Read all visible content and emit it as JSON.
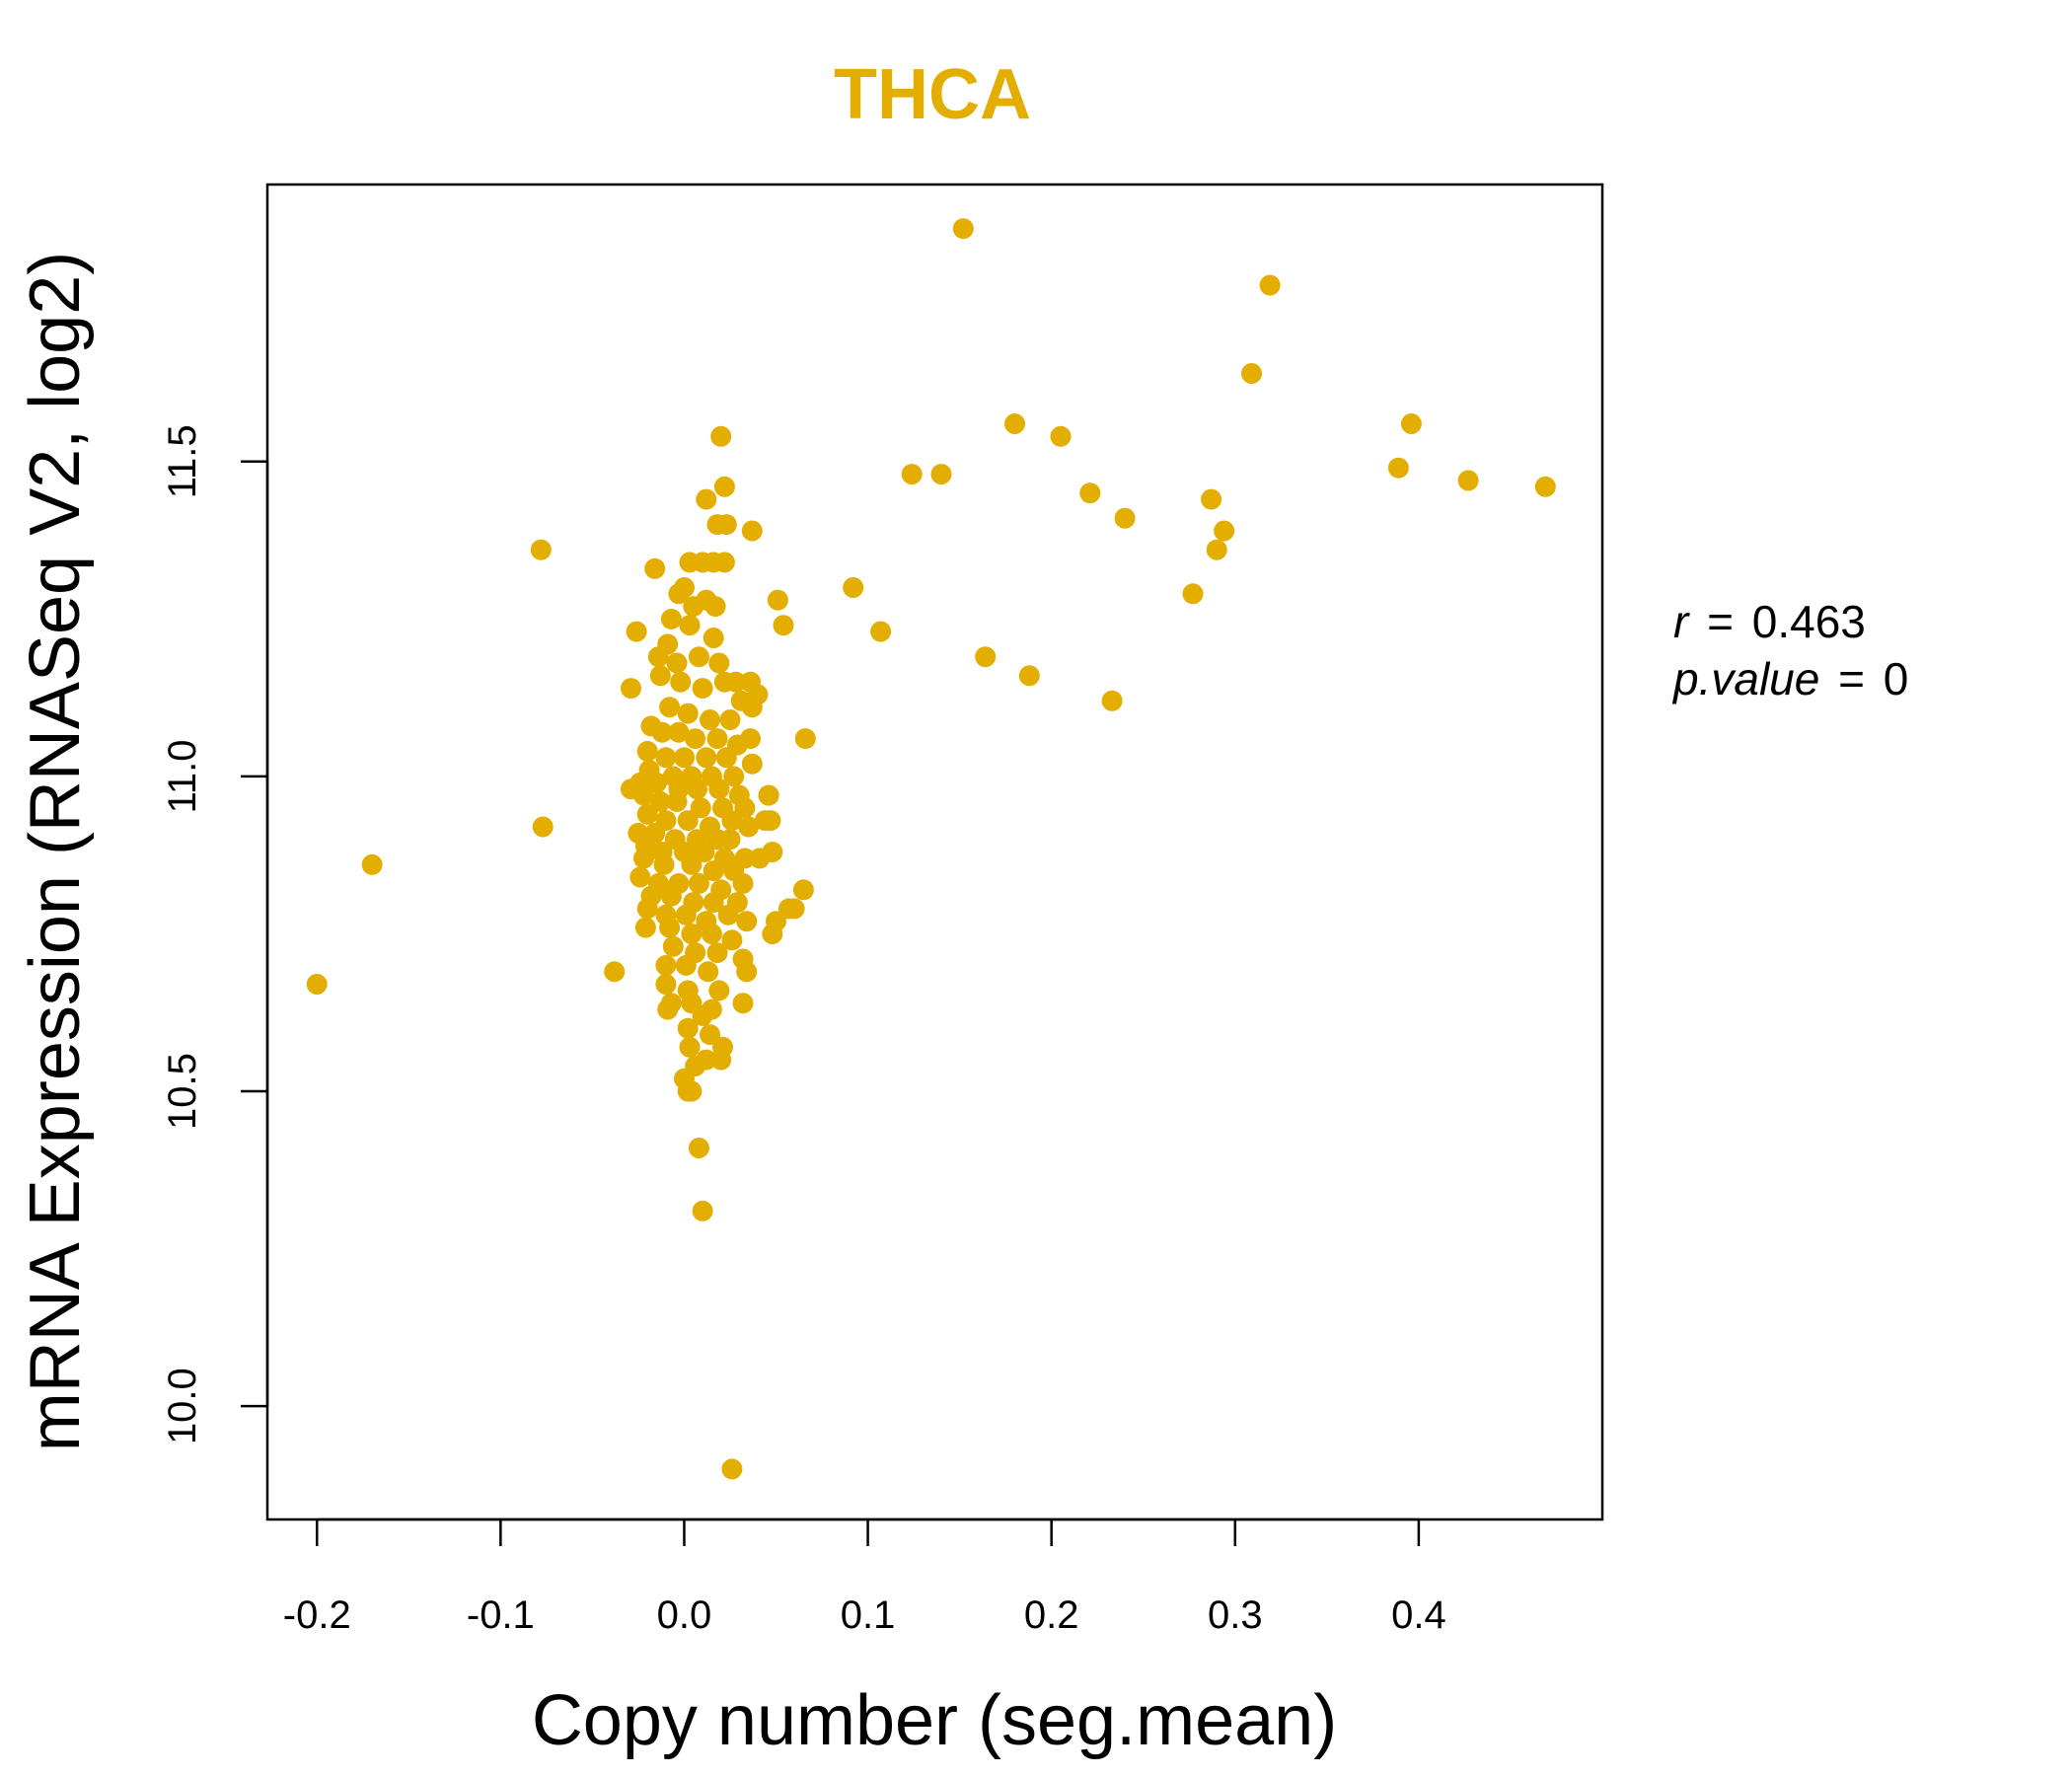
{
  "chart_data": {
    "type": "scatter",
    "title": "THCA",
    "xlabel": "Copy number (seg.mean)",
    "ylabel": "mRNA Expression (RNASeq V2, log2)",
    "xlim": [
      -0.227,
      0.5
    ],
    "ylim": [
      9.82,
      11.94
    ],
    "xticks": [
      -0.2,
      -0.1,
      0.0,
      0.1,
      0.2,
      0.3,
      0.4
    ],
    "xtick_labels": [
      "-0.2",
      "-0.1",
      "0.0",
      "0.1",
      "0.2",
      "0.3",
      "0.4"
    ],
    "yticks": [
      10.0,
      10.5,
      11.0,
      11.5
    ],
    "ytick_labels": [
      "10.0",
      "10.5",
      "11.0",
      "11.5"
    ],
    "point_color": "#E3AE00",
    "stats": {
      "r_label": "r",
      "r_value": "0.463",
      "p_label": "p.value",
      "p_value": "0",
      "eq": "="
    },
    "points": [
      [
        -0.2,
        10.67
      ],
      [
        -0.17,
        10.86
      ],
      [
        -0.078,
        11.36
      ],
      [
        -0.077,
        10.92
      ],
      [
        -0.038,
        10.69
      ],
      [
        0.152,
        11.87
      ],
      [
        0.319,
        11.78
      ],
      [
        0.309,
        11.64
      ],
      [
        0.18,
        11.56
      ],
      [
        0.205,
        11.54
      ],
      [
        0.124,
        11.48
      ],
      [
        0.14,
        11.48
      ],
      [
        0.221,
        11.45
      ],
      [
        0.24,
        11.41
      ],
      [
        0.287,
        11.44
      ],
      [
        0.294,
        11.39
      ],
      [
        0.29,
        11.36
      ],
      [
        0.277,
        11.29
      ],
      [
        0.092,
        11.3
      ],
      [
        0.107,
        11.23
      ],
      [
        0.164,
        11.19
      ],
      [
        0.188,
        11.16
      ],
      [
        0.233,
        11.12
      ],
      [
        0.396,
        11.56
      ],
      [
        0.389,
        11.49
      ],
      [
        0.427,
        11.47
      ],
      [
        0.469,
        11.46
      ],
      [
        0.066,
        11.06
      ],
      [
        0.065,
        10.82
      ],
      [
        0.06,
        10.79
      ],
      [
        0.057,
        10.79
      ],
      [
        0.05,
        10.77
      ],
      [
        0.048,
        10.75
      ],
      [
        0.046,
        10.97
      ],
      [
        0.047,
        10.93
      ],
      [
        0.044,
        10.93
      ],
      [
        0.048,
        10.88
      ],
      [
        0.041,
        10.87
      ],
      [
        0.051,
        11.28
      ],
      [
        0.054,
        11.24
      ],
      [
        0.037,
        11.39
      ],
      [
        0.02,
        11.54
      ],
      [
        0.022,
        11.46
      ],
      [
        0.012,
        11.44
      ],
      [
        0.018,
        11.4
      ],
      [
        0.023,
        11.4
      ],
      [
        0.003,
        11.34
      ],
      [
        0.01,
        11.34
      ],
      [
        0.016,
        11.34
      ],
      [
        0.022,
        11.34
      ],
      [
        -0.016,
        11.33
      ],
      [
        0.0,
        11.3
      ],
      [
        -0.003,
        11.29
      ],
      [
        0.005,
        11.27
      ],
      [
        0.012,
        11.28
      ],
      [
        0.017,
        11.27
      ],
      [
        -0.007,
        11.25
      ],
      [
        0.003,
        11.24
      ],
      [
        0.016,
        11.22
      ],
      [
        -0.026,
        11.23
      ],
      [
        -0.009,
        11.21
      ],
      [
        -0.014,
        11.19
      ],
      [
        -0.004,
        11.18
      ],
      [
        0.008,
        11.19
      ],
      [
        0.019,
        11.18
      ],
      [
        -0.013,
        11.16
      ],
      [
        -0.002,
        11.15
      ],
      [
        0.01,
        11.14
      ],
      [
        0.022,
        11.15
      ],
      [
        0.028,
        11.15
      ],
      [
        0.036,
        11.15
      ],
      [
        -0.029,
        11.14
      ],
      [
        0.031,
        11.12
      ],
      [
        0.04,
        11.13
      ],
      [
        0.037,
        11.11
      ],
      [
        -0.008,
        11.11
      ],
      [
        0.002,
        11.1
      ],
      [
        0.014,
        11.09
      ],
      [
        0.025,
        11.09
      ],
      [
        -0.018,
        11.08
      ],
      [
        -0.012,
        11.07
      ],
      [
        -0.003,
        11.07
      ],
      [
        0.006,
        11.06
      ],
      [
        0.018,
        11.06
      ],
      [
        0.036,
        11.06
      ],
      [
        0.029,
        11.05
      ],
      [
        -0.02,
        11.04
      ],
      [
        -0.01,
        11.03
      ],
      [
        0.0,
        11.03
      ],
      [
        0.012,
        11.03
      ],
      [
        0.023,
        11.03
      ],
      [
        0.037,
        11.02
      ],
      [
        -0.019,
        11.01
      ],
      [
        -0.006,
        11.0
      ],
      [
        0.004,
        11.0
      ],
      [
        0.015,
        11.0
      ],
      [
        0.027,
        11.0
      ],
      [
        -0.024,
        10.99
      ],
      [
        -0.015,
        10.99
      ],
      [
        -0.003,
        10.98
      ],
      [
        0.007,
        10.98
      ],
      [
        0.019,
        10.98
      ],
      [
        0.03,
        10.97
      ],
      [
        -0.029,
        10.98
      ],
      [
        -0.022,
        10.97
      ],
      [
        0.046,
        10.97
      ],
      [
        -0.013,
        10.96
      ],
      [
        -0.004,
        10.96
      ],
      [
        0.009,
        10.95
      ],
      [
        0.021,
        10.95
      ],
      [
        0.033,
        10.95
      ],
      [
        -0.02,
        10.94
      ],
      [
        -0.01,
        10.93
      ],
      [
        0.002,
        10.93
      ],
      [
        0.014,
        10.92
      ],
      [
        0.026,
        10.93
      ],
      [
        0.035,
        10.92
      ],
      [
        -0.025,
        10.91
      ],
      [
        -0.016,
        10.91
      ],
      [
        -0.005,
        10.9
      ],
      [
        0.007,
        10.9
      ],
      [
        0.018,
        10.9
      ],
      [
        0.025,
        10.9
      ],
      [
        -0.021,
        10.89
      ],
      [
        -0.012,
        10.88
      ],
      [
        0.0,
        10.88
      ],
      [
        0.011,
        10.88
      ],
      [
        0.022,
        10.87
      ],
      [
        0.033,
        10.87
      ],
      [
        -0.022,
        10.87
      ],
      [
        -0.011,
        10.86
      ],
      [
        0.004,
        10.86
      ],
      [
        0.016,
        10.85
      ],
      [
        0.027,
        10.85
      ],
      [
        -0.024,
        10.84
      ],
      [
        -0.014,
        10.83
      ],
      [
        -0.003,
        10.83
      ],
      [
        0.008,
        10.83
      ],
      [
        0.02,
        10.82
      ],
      [
        0.032,
        10.83
      ],
      [
        -0.018,
        10.81
      ],
      [
        -0.007,
        10.81
      ],
      [
        0.005,
        10.8
      ],
      [
        0.016,
        10.8
      ],
      [
        0.029,
        10.8
      ],
      [
        -0.02,
        10.79
      ],
      [
        -0.01,
        10.78
      ],
      [
        0.001,
        10.78
      ],
      [
        0.012,
        10.77
      ],
      [
        0.024,
        10.78
      ],
      [
        0.034,
        10.77
      ],
      [
        -0.021,
        10.76
      ],
      [
        -0.008,
        10.76
      ],
      [
        0.004,
        10.75
      ],
      [
        0.015,
        10.75
      ],
      [
        0.026,
        10.74
      ],
      [
        0.032,
        10.71
      ],
      [
        -0.006,
        10.73
      ],
      [
        0.006,
        10.72
      ],
      [
        0.018,
        10.72
      ],
      [
        -0.01,
        10.7
      ],
      [
        0.001,
        10.7
      ],
      [
        0.013,
        10.69
      ],
      [
        0.034,
        10.69
      ],
      [
        -0.01,
        10.67
      ],
      [
        0.002,
        10.66
      ],
      [
        0.019,
        10.66
      ],
      [
        0.032,
        10.64
      ],
      [
        -0.007,
        10.64
      ],
      [
        0.004,
        10.64
      ],
      [
        0.015,
        10.63
      ],
      [
        -0.009,
        10.63
      ],
      [
        0.01,
        10.62
      ],
      [
        0.002,
        10.6
      ],
      [
        0.014,
        10.59
      ],
      [
        0.003,
        10.57
      ],
      [
        0.021,
        10.57
      ],
      [
        0.012,
        10.55
      ],
      [
        0.02,
        10.55
      ],
      [
        0.006,
        10.54
      ],
      [
        0.0,
        10.52
      ],
      [
        0.002,
        10.5
      ],
      [
        0.004,
        10.5
      ],
      [
        0.008,
        10.41
      ],
      [
        0.01,
        10.31
      ],
      [
        0.026,
        9.9
      ]
    ]
  }
}
